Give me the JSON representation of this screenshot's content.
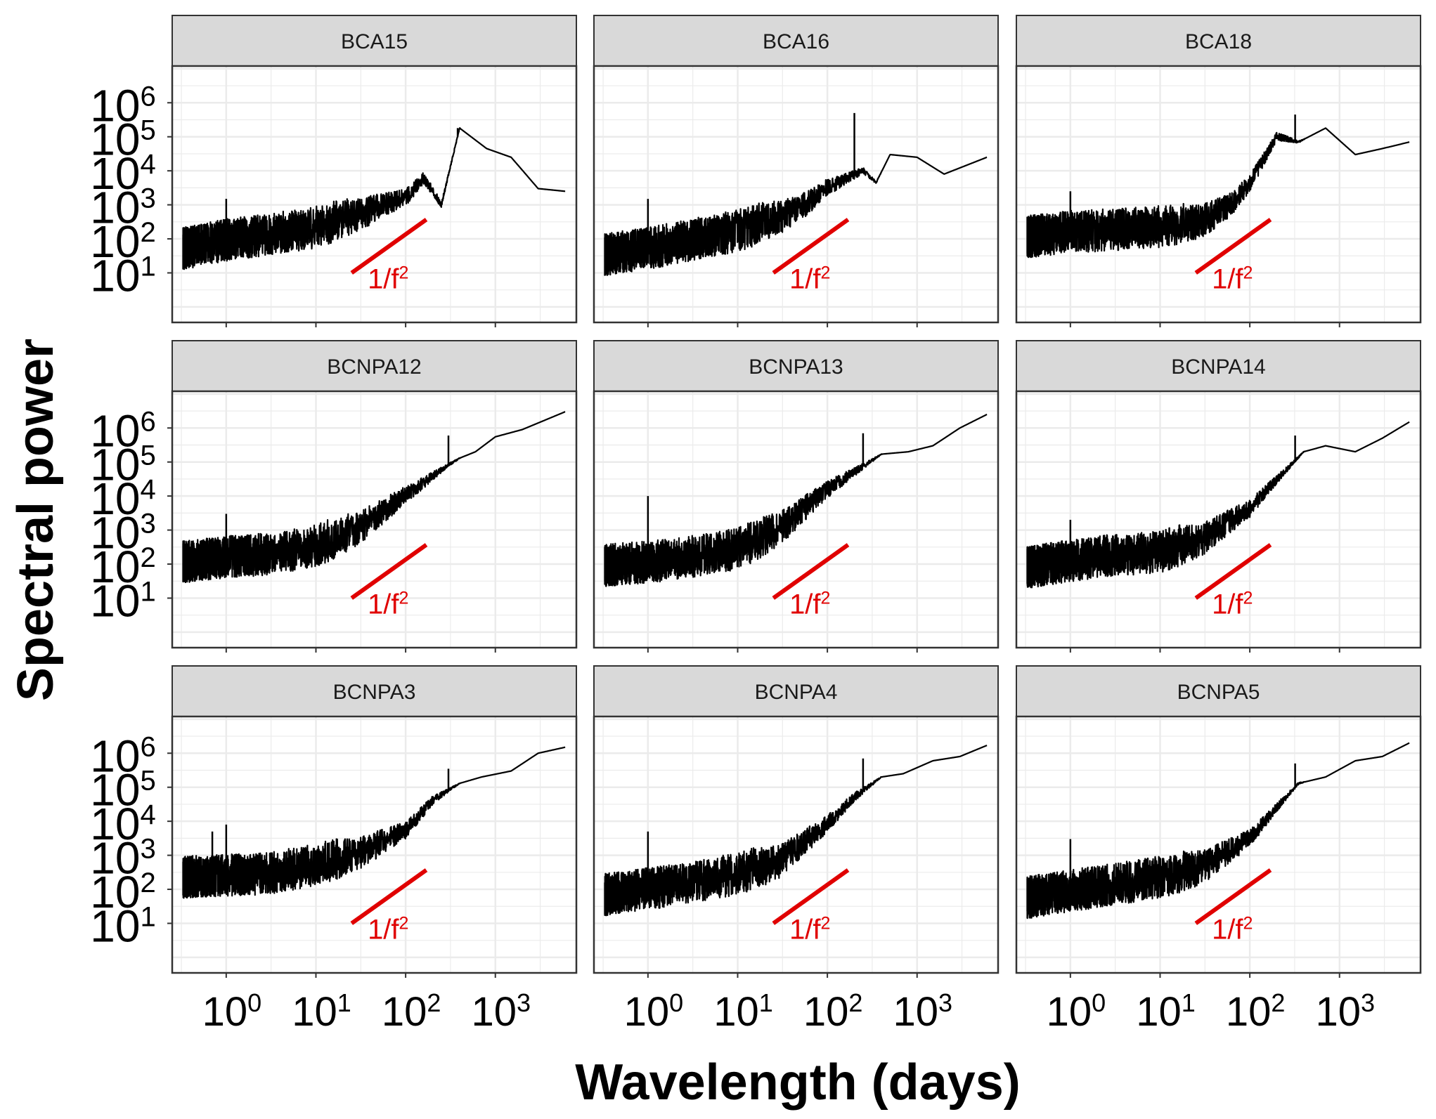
{
  "colors": {
    "series": "#000000",
    "reference_line": "#e00000",
    "strip_fill": "#d9d9d9",
    "grid": "#ebebeb",
    "border": "#333333"
  },
  "chart_data": {
    "type": "line",
    "layout": "facet-grid-3x3",
    "xlabel": "Wavelength (days)",
    "ylabel": "Spectral power",
    "x_scale": "log10",
    "y_scale": "log10",
    "x_range": [
      0.25,
      8000
    ],
    "y_range": [
      0.35,
      12000000
    ],
    "x_ticks": [
      {
        "value": 1,
        "base": "10",
        "exp": "0"
      },
      {
        "value": 10,
        "base": "10",
        "exp": "1"
      },
      {
        "value": 100,
        "base": "10",
        "exp": "2"
      },
      {
        "value": 1000,
        "base": "10",
        "exp": "3"
      }
    ],
    "y_ticks": [
      {
        "value": 10,
        "base": "10",
        "exp": "1"
      },
      {
        "value": 100,
        "base": "10",
        "exp": "2"
      },
      {
        "value": 1000,
        "base": "10",
        "exp": "3"
      },
      {
        "value": 10000,
        "base": "10",
        "exp": "4"
      },
      {
        "value": 100000,
        "base": "10",
        "exp": "5"
      },
      {
        "value": 1000000,
        "base": "10",
        "exp": "6"
      }
    ],
    "grid": true,
    "reference_line": {
      "label_base": "1/f",
      "label_exp": "2",
      "x": [
        25,
        170
      ],
      "y": [
        10,
        370
      ]
    },
    "panels": [
      {
        "name": "BCA15",
        "x": [
          0.33,
          1,
          3,
          10,
          30,
          100,
          160,
          250,
          400,
          800,
          1500,
          3000,
          6000
        ],
        "y": [
          45,
          80,
          120,
          190,
          470,
          1500,
          6000,
          1000,
          180000,
          45000,
          25000,
          3000,
          2500
        ],
        "spikes": [
          {
            "x": 1.0,
            "y": 1500
          },
          {
            "x": 380,
            "y": 180000
          }
        ]
      },
      {
        "name": "BCA16",
        "x": [
          0.33,
          1,
          3,
          10,
          30,
          60,
          100,
          250,
          350,
          500,
          1000,
          2000,
          6000
        ],
        "y": [
          30,
          45,
          80,
          150,
          400,
          1000,
          3000,
          10000,
          4500,
          30000,
          25000,
          8000,
          25000
        ],
        "spikes": [
          {
            "x": 1.0,
            "y": 1500
          },
          {
            "x": 200,
            "y": 500000
          }
        ]
      },
      {
        "name": "BCA18",
        "x": [
          0.33,
          1,
          3,
          10,
          30,
          60,
          100,
          200,
          350,
          700,
          1500,
          3000,
          6000
        ],
        "y": [
          100,
          140,
          160,
          200,
          300,
          900,
          4000,
          100000,
          70000,
          180000,
          30000,
          45000,
          70000
        ],
        "spikes": [
          {
            "x": 1.0,
            "y": 2500
          },
          {
            "x": 320,
            "y": 450000
          }
        ]
      },
      {
        "name": "BCNPA12",
        "x": [
          0.33,
          1,
          3,
          10,
          30,
          100,
          300,
          400,
          600,
          1000,
          2000,
          6000
        ],
        "y": [
          100,
          140,
          170,
          300,
          1000,
          10000,
          80000,
          130000,
          200000,
          550000,
          900000,
          3000000
        ],
        "spikes": [
          {
            "x": 1.0,
            "y": 3000
          },
          {
            "x": 300,
            "y": 600000
          }
        ]
      },
      {
        "name": "BCNPA13",
        "x": [
          0.33,
          1,
          3,
          10,
          30,
          100,
          300,
          400,
          800,
          1500,
          3000,
          6000
        ],
        "y": [
          80,
          100,
          140,
          250,
          1000,
          15000,
          100000,
          170000,
          200000,
          300000,
          1000000,
          2500000
        ],
        "spikes": [
          {
            "x": 1.0,
            "y": 10000
          },
          {
            "x": 250,
            "y": 700000
          }
        ]
      },
      {
        "name": "BCNPA14",
        "x": [
          0.33,
          1,
          3,
          10,
          30,
          100,
          200,
          400,
          700,
          1500,
          3000,
          6000
        ],
        "y": [
          70,
          110,
          160,
          200,
          500,
          4000,
          30000,
          200000,
          300000,
          200000,
          500000,
          1500000
        ],
        "spikes": [
          {
            "x": 1.0,
            "y": 2000
          },
          {
            "x": 320,
            "y": 600000
          }
        ]
      },
      {
        "name": "BCNPA3",
        "x": [
          0.33,
          1,
          3,
          10,
          30,
          100,
          200,
          400,
          700,
          1500,
          3000,
          6000
        ],
        "y": [
          200,
          220,
          260,
          450,
          1000,
          5000,
          40000,
          130000,
          200000,
          300000,
          1000000,
          1500000
        ],
        "spikes": [
          {
            "x": 1.0,
            "y": 8000
          },
          {
            "x": 0.7,
            "y": 5000
          },
          {
            "x": 300,
            "y": 350000
          }
        ]
      },
      {
        "name": "BCNPA4",
        "x": [
          0.33,
          1,
          3,
          10,
          30,
          100,
          200,
          400,
          700,
          1500,
          3000,
          6000
        ],
        "y": [
          60,
          90,
          140,
          250,
          600,
          8000,
          50000,
          200000,
          250000,
          600000,
          800000,
          1700000
        ],
        "spikes": [
          {
            "x": 1.0,
            "y": 5000
          },
          {
            "x": 250,
            "y": 700000
          }
        ]
      },
      {
        "name": "BCNPA5",
        "x": [
          0.33,
          1,
          3,
          10,
          30,
          100,
          200,
          350,
          700,
          1500,
          3000,
          6000
        ],
        "y": [
          50,
          80,
          120,
          200,
          400,
          3000,
          25000,
          130000,
          200000,
          600000,
          800000,
          2000000
        ],
        "spikes": [
          {
            "x": 1.0,
            "y": 3000
          },
          {
            "x": 320,
            "y": 500000
          }
        ]
      }
    ]
  }
}
